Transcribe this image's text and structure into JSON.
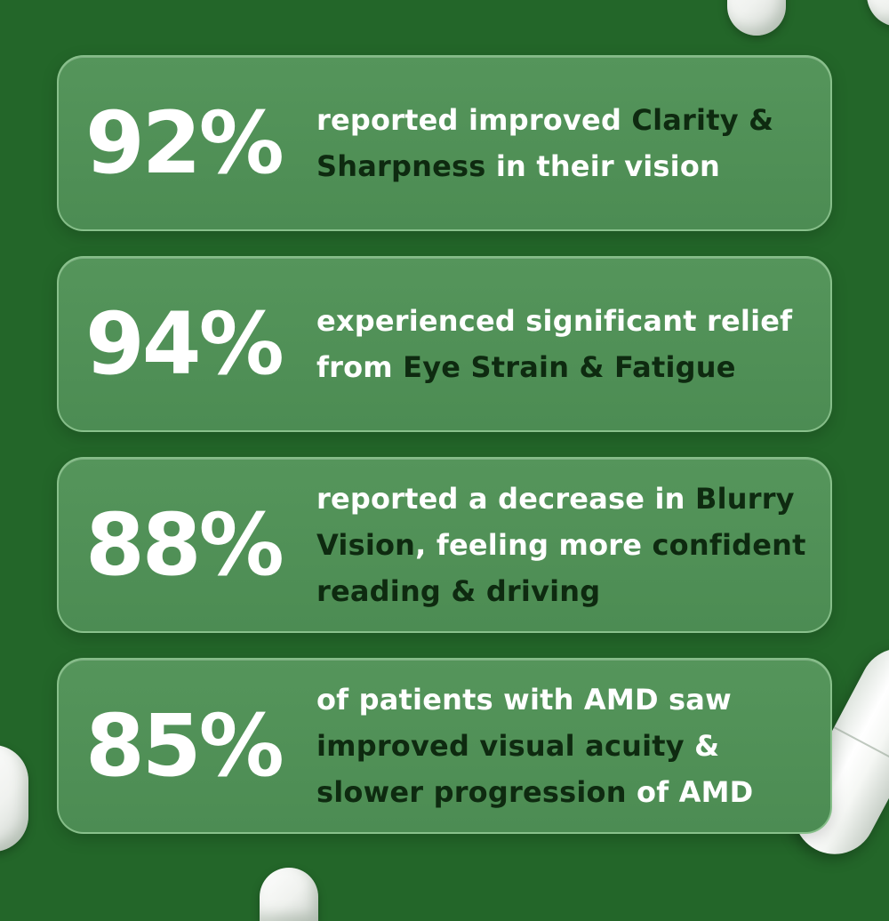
{
  "stats": [
    {
      "percent": "92%",
      "t1": "reported improved ",
      "t2": "Clarity &",
      "t3": "Sharpness",
      "t4": " in their vision",
      "t5": "",
      "t6": ""
    },
    {
      "percent": "94%",
      "t1": "experienced significant relief",
      "t2": "from ",
      "t3": "Eye Strain & Fatigue",
      "t4": "",
      "t5": "",
      "t6": ""
    },
    {
      "percent": "88%",
      "t1": "reported a decrease in ",
      "t2": "Blurry",
      "t3": "Vision",
      "t4": ", feeling more ",
      "t5": "confident",
      "t6": "reading & driving"
    },
    {
      "percent": "85%",
      "t1": "of patients with AMD saw",
      "t2": "improved visual acuity",
      "t3": " &",
      "t4": "slower progression",
      "t5": " of AMD",
      "t6": ""
    }
  ],
  "colors": {
    "background": "#236629",
    "card": "#4f8f56",
    "text_light": "#ffffff",
    "text_dark": "#0e2a10"
  }
}
